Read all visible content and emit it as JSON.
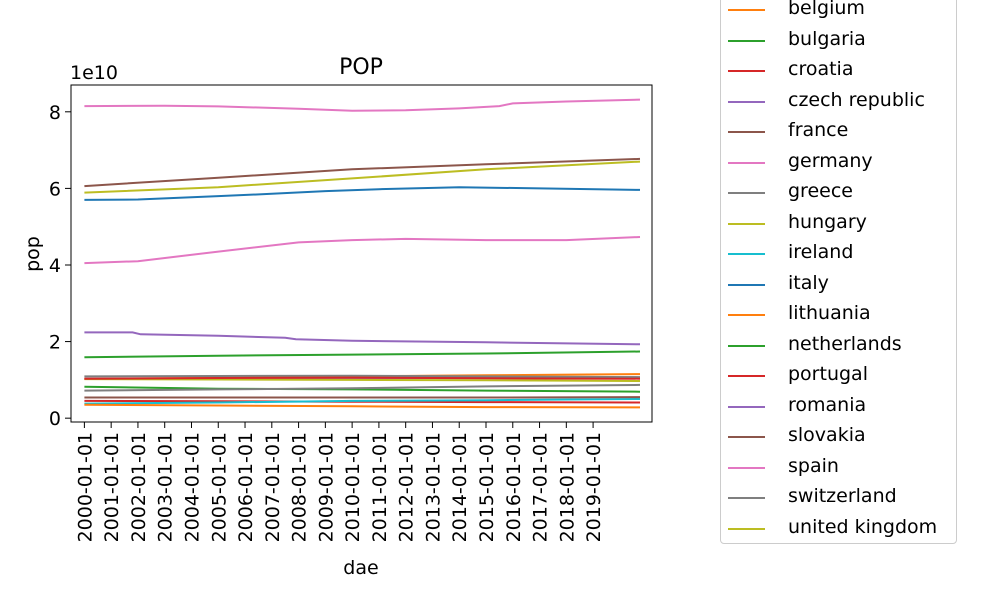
{
  "chart_data": {
    "type": "line",
    "title": "POP",
    "xlabel": "dae",
    "ylabel": "pop",
    "y_multiplier_label": "1e10",
    "x_tick_labels": [
      "2000-01-01",
      "2001-01-01",
      "2002-01-01",
      "2003-01-01",
      "2004-01-01",
      "2005-01-01",
      "2006-01-01",
      "2007-01-01",
      "2008-01-01",
      "2009-01-01",
      "2010-01-01",
      "2011-01-01",
      "2012-01-01",
      "2013-01-01",
      "2014-01-01",
      "2015-01-01",
      "2016-01-01",
      "2017-01-01",
      "2018-01-01",
      "2019-01-01"
    ],
    "y_ticks": [
      0,
      2,
      4,
      6,
      8
    ],
    "ylim": [
      -0.1,
      8.7
    ],
    "xlim": [
      1999.5,
      2021.2
    ],
    "grid": false,
    "legend_placement": "right",
    "series": [
      {
        "name": "belgium",
        "color": "#ff7f0e",
        "x": [
          2000,
          2005,
          2010,
          2015,
          2020.75
        ],
        "y": [
          1.03,
          1.05,
          1.09,
          1.12,
          1.15
        ]
      },
      {
        "name": "bulgaria",
        "color": "#2ca02c",
        "x": [
          2000,
          2005,
          2010,
          2015,
          2020.75
        ],
        "y": [
          0.82,
          0.77,
          0.75,
          0.72,
          0.69
        ]
      },
      {
        "name": "croatia",
        "color": "#d62728",
        "x": [
          2000,
          2005,
          2010,
          2015,
          2020.75
        ],
        "y": [
          0.45,
          0.44,
          0.43,
          0.42,
          0.41
        ]
      },
      {
        "name": "czech republic",
        "color": "#9467bd",
        "x": [
          2000,
          2005,
          2010,
          2015,
          2020.75
        ],
        "y": [
          1.03,
          1.02,
          1.05,
          1.05,
          1.07
        ]
      },
      {
        "name": "france",
        "color": "#8c564b",
        "x": [
          2000,
          2005,
          2010,
          2015,
          2020.75
        ],
        "y": [
          6.06,
          6.28,
          6.5,
          6.63,
          6.77
        ]
      },
      {
        "name": "germany",
        "color": "#e377c2",
        "x": [
          2000,
          2003,
          2005,
          2008,
          2010,
          2012,
          2014,
          2015.5,
          2016,
          2018,
          2020.75
        ],
        "y": [
          8.15,
          8.16,
          8.14,
          8.08,
          8.03,
          8.04,
          8.09,
          8.15,
          8.22,
          8.27,
          8.32
        ]
      },
      {
        "name": "greece",
        "color": "#7f7f7f",
        "x": [
          2000,
          2005,
          2010,
          2015,
          2020.75
        ],
        "y": [
          1.09,
          1.1,
          1.11,
          1.09,
          1.07
        ]
      },
      {
        "name": "hungary",
        "color": "#bcbd22",
        "x": [
          2000,
          2005,
          2010,
          2015,
          2020.75
        ],
        "y": [
          1.02,
          1.01,
          1.0,
          0.99,
          0.97
        ]
      },
      {
        "name": "ireland",
        "color": "#17becf",
        "x": [
          2000,
          2005,
          2010,
          2015,
          2020.75
        ],
        "y": [
          0.38,
          0.41,
          0.45,
          0.47,
          0.5
        ]
      },
      {
        "name": "italy",
        "color": "#1f77b4",
        "x": [
          2000,
          2002,
          2005,
          2007,
          2009,
          2011,
          2014,
          2020.75
        ],
        "y": [
          5.7,
          5.71,
          5.8,
          5.86,
          5.93,
          5.98,
          6.03,
          5.96
        ]
      },
      {
        "name": "lithuania",
        "color": "#ff7f0e",
        "x": [
          2000,
          2005,
          2010,
          2015,
          2020.75
        ],
        "y": [
          0.35,
          0.33,
          0.31,
          0.29,
          0.28
        ]
      },
      {
        "name": "netherlands",
        "color": "#2ca02c",
        "x": [
          2000,
          2005,
          2010,
          2015,
          2020.75
        ],
        "y": [
          1.59,
          1.63,
          1.66,
          1.69,
          1.74
        ]
      },
      {
        "name": "portugal",
        "color": "#d62728",
        "x": [
          2000,
          2005,
          2010,
          2015,
          2020.75
        ],
        "y": [
          1.03,
          1.05,
          1.06,
          1.04,
          1.03
        ]
      },
      {
        "name": "romania",
        "color": "#9467bd",
        "x": [
          2000,
          2001.8,
          2002.1,
          2005,
          2007.5,
          2007.9,
          2010,
          2015,
          2020.75
        ],
        "y": [
          2.24,
          2.24,
          2.19,
          2.15,
          2.1,
          2.06,
          2.02,
          1.98,
          1.93
        ]
      },
      {
        "name": "slovakia",
        "color": "#8c564b",
        "x": [
          2000,
          2005,
          2010,
          2015,
          2020.75
        ],
        "y": [
          0.54,
          0.54,
          0.54,
          0.54,
          0.55
        ]
      },
      {
        "name": "spain",
        "color": "#e377c2",
        "x": [
          2000,
          2002,
          2005,
          2008,
          2010,
          2012,
          2015,
          2018,
          2020.75
        ],
        "y": [
          4.05,
          4.1,
          4.35,
          4.59,
          4.65,
          4.68,
          4.65,
          4.65,
          4.73
        ]
      },
      {
        "name": "switzerland",
        "color": "#7f7f7f",
        "x": [
          2000,
          2005,
          2010,
          2015,
          2020.75
        ],
        "y": [
          0.72,
          0.75,
          0.78,
          0.83,
          0.87
        ]
      },
      {
        "name": "united kingdom",
        "color": "#bcbd22",
        "x": [
          2000,
          2005,
          2010,
          2015,
          2020.75
        ],
        "y": [
          5.89,
          6.03,
          6.26,
          6.5,
          6.7
        ]
      }
    ]
  }
}
